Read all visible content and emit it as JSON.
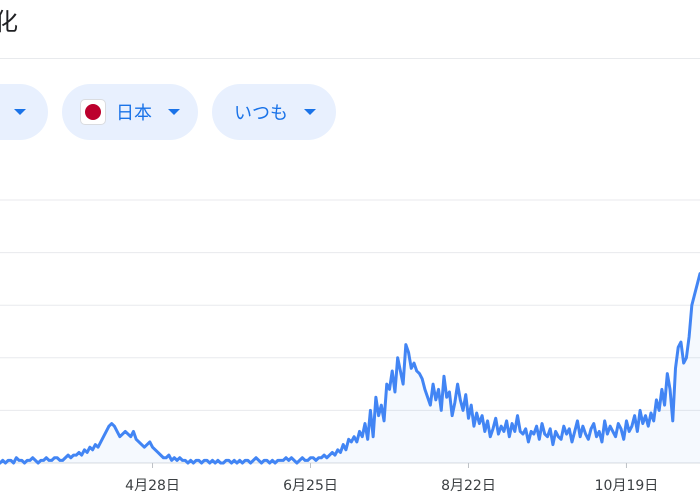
{
  "header": {
    "title": "化"
  },
  "filters": {
    "region_label": "日本",
    "region_flag_icon": "japan-flag-icon",
    "period_label": "いつも",
    "caret_icon": "caret-down-icon"
  },
  "colors": {
    "accent": "#1a73e8",
    "chip_background": "#e8f0fe",
    "line": "#4285f4",
    "flag_red": "#bc002d"
  },
  "chart_data": {
    "type": "line",
    "title": "",
    "xlabel": "",
    "ylabel": "",
    "x_ticks": [
      {
        "label": "4月28日",
        "index": 56
      },
      {
        "label": "6月25日",
        "index": 114
      },
      {
        "label": "8月22日",
        "index": 172
      },
      {
        "label": "10月19日",
        "index": 230
      }
    ],
    "ylim": [
      0,
      100
    ],
    "gridlines": [
      20,
      40,
      60,
      80,
      100
    ],
    "series": [
      {
        "values": [
          0,
          1,
          0,
          1,
          1,
          0,
          2,
          1,
          1,
          0,
          1,
          1,
          2,
          1,
          0,
          1,
          1,
          2,
          1,
          1,
          2,
          2,
          1,
          1,
          2,
          3,
          2,
          3,
          3,
          4,
          3,
          5,
          4,
          6,
          5,
          7,
          6,
          8,
          10,
          12,
          14,
          15,
          14,
          12,
          10,
          11,
          12,
          11,
          10,
          12,
          9,
          8,
          7,
          6,
          7,
          8,
          6,
          5,
          4,
          3,
          2,
          2,
          3,
          1,
          2,
          1,
          2,
          1,
          1,
          0,
          1,
          0,
          1,
          1,
          0,
          1,
          1,
          0,
          1,
          0,
          1,
          0,
          0,
          1,
          1,
          0,
          1,
          0,
          1,
          0,
          1,
          1,
          0,
          1,
          2,
          1,
          0,
          1,
          1,
          0,
          1,
          0,
          1,
          1,
          1,
          2,
          1,
          2,
          1,
          0,
          1,
          2,
          1,
          1,
          2,
          2,
          1,
          2,
          2,
          3,
          2,
          3,
          4,
          3,
          5,
          4,
          7,
          5,
          9,
          8,
          10,
          8,
          12,
          10,
          15,
          9,
          20,
          10,
          25,
          18,
          22,
          16,
          30,
          28,
          35,
          27,
          40,
          35,
          30,
          45,
          42,
          36,
          38,
          35,
          34,
          32,
          28,
          25,
          22,
          30,
          24,
          28,
          20,
          33,
          25,
          27,
          18,
          23,
          30,
          24,
          20,
          26,
          17,
          22,
          14,
          19,
          15,
          18,
          12,
          16,
          10,
          13,
          17,
          11,
          14,
          12,
          16,
          10,
          15,
          12,
          18,
          12,
          11,
          13,
          8,
          12,
          11,
          14,
          9,
          15,
          11,
          10,
          13,
          7,
          12,
          10,
          9,
          14,
          11,
          13,
          8,
          12,
          16,
          10,
          14,
          11,
          9,
          13,
          15,
          10,
          12,
          8,
          16,
          11,
          14,
          12,
          10,
          15,
          13,
          9,
          16,
          12,
          14,
          18,
          12,
          20,
          15,
          18,
          14,
          19,
          16,
          24,
          20,
          28,
          22,
          34,
          28,
          16,
          36,
          44,
          46,
          38,
          40,
          48,
          60,
          64,
          68,
          72
        ]
      }
    ]
  }
}
